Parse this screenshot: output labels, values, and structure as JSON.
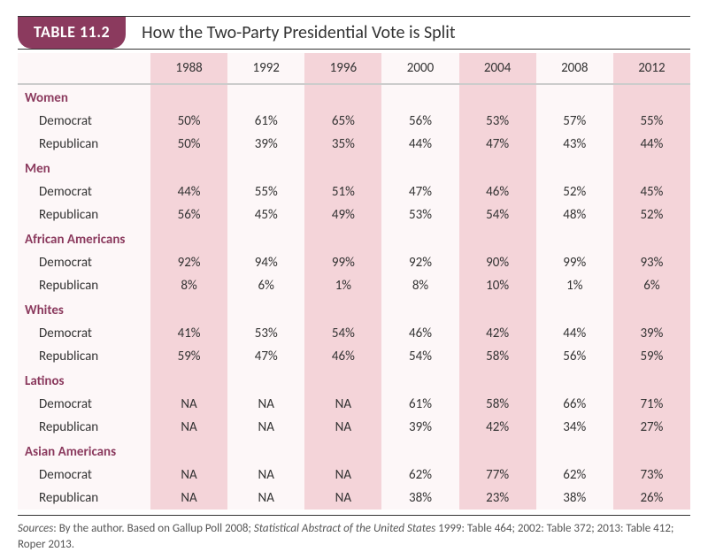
{
  "header": {
    "badge": "TABLE 11.2",
    "title": "How the Two-Party Presidential Vote is Split"
  },
  "columns": [
    "1988",
    "1992",
    "1996",
    "2000",
    "2004",
    "2008",
    "2012"
  ],
  "groups": [
    {
      "name": "Women",
      "rows": [
        {
          "label": "Democrat",
          "values": [
            "50%",
            "61%",
            "65%",
            "56%",
            "53%",
            "57%",
            "55%"
          ]
        },
        {
          "label": "Republican",
          "values": [
            "50%",
            "39%",
            "35%",
            "44%",
            "47%",
            "43%",
            "44%"
          ]
        }
      ]
    },
    {
      "name": "Men",
      "rows": [
        {
          "label": "Democrat",
          "values": [
            "44%",
            "55%",
            "51%",
            "47%",
            "46%",
            "52%",
            "45%"
          ]
        },
        {
          "label": "Republican",
          "values": [
            "56%",
            "45%",
            "49%",
            "53%",
            "54%",
            "48%",
            "52%"
          ]
        }
      ]
    },
    {
      "name": "African Americans",
      "rows": [
        {
          "label": "Democrat",
          "values": [
            "92%",
            "94%",
            "99%",
            "92%",
            "90%",
            "99%",
            "93%"
          ]
        },
        {
          "label": "Republican",
          "values": [
            "8%",
            "6%",
            "1%",
            "8%",
            "10%",
            "1%",
            "6%"
          ]
        }
      ]
    },
    {
      "name": "Whites",
      "rows": [
        {
          "label": "Democrat",
          "values": [
            "41%",
            "53%",
            "54%",
            "46%",
            "42%",
            "44%",
            "39%"
          ]
        },
        {
          "label": "Republican",
          "values": [
            "59%",
            "47%",
            "46%",
            "54%",
            "58%",
            "56%",
            "59%"
          ]
        }
      ]
    },
    {
      "name": "Latinos",
      "rows": [
        {
          "label": "Democrat",
          "values": [
            "NA",
            "NA",
            "NA",
            "61%",
            "58%",
            "66%",
            "71%"
          ]
        },
        {
          "label": "Republican",
          "values": [
            "NA",
            "NA",
            "NA",
            "39%",
            "42%",
            "34%",
            "27%"
          ]
        }
      ]
    },
    {
      "name": "Asian Americans",
      "rows": [
        {
          "label": "Democrat",
          "values": [
            "NA",
            "NA",
            "NA",
            "62%",
            "77%",
            "62%",
            "73%"
          ]
        },
        {
          "label": "Republican",
          "values": [
            "NA",
            "NA",
            "NA",
            "38%",
            "23%",
            "38%",
            "26%"
          ]
        }
      ]
    }
  ],
  "sources_parts": [
    {
      "text": "Sources",
      "italic": true
    },
    {
      "text": ": By the author. Based on Gallup Poll 2008; "
    },
    {
      "text": "Statistical Abstract of the United States",
      "italic": true
    },
    {
      "text": " 1999: Table 464; 2002: Table 372; 2013: Table 412; Roper 2013."
    }
  ],
  "style": {
    "badge_bg": "#8b3a5e",
    "badge_color": "#ffffff",
    "band_pink": "#f4d4d9",
    "band_cream": "#fdf7f8",
    "group_color": "#8b3a5e",
    "text_color": "#333333",
    "border_color": "#333333"
  }
}
